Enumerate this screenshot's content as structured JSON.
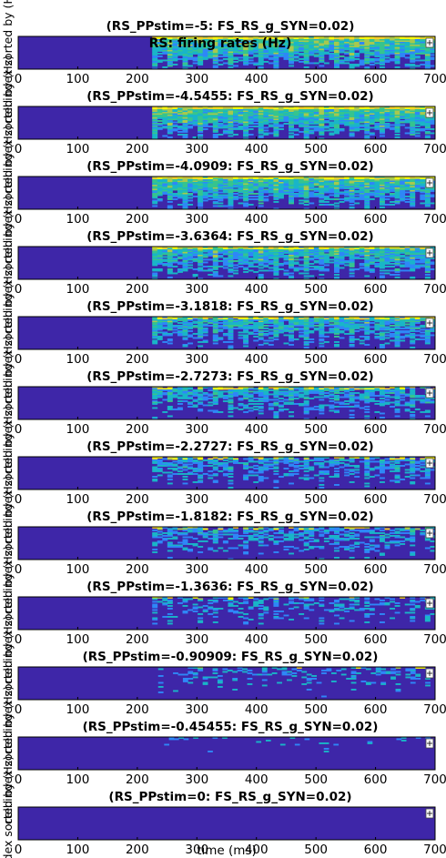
{
  "figure_title": "RS: firing rates (Hz)",
  "xlabel": "time (ms)",
  "ylabel_fragment": "cell index sorted by (Hz)",
  "colormap": [
    "#3e26a8",
    "#2e87f7",
    "#19b5c8",
    "#35c48f",
    "#a8c84e",
    "#f5d02b",
    "#f9fb0e"
  ],
  "background_color": "#3e26a8",
  "legend_icon": "plus-sign-icon",
  "chart_data": [
    {
      "type": "heatmap",
      "title": "(RS_PPstim=-5: FS_RS_g_SYN=0.02)",
      "onset_ms": 225,
      "activity": 0.96,
      "xlim": [
        0,
        700
      ],
      "xticks": [
        "0",
        "100",
        "200",
        "300",
        "400",
        "500",
        "600",
        "700"
      ]
    },
    {
      "type": "heatmap",
      "title": "(RS_PPstim=-4.5455: FS_RS_g_SYN=0.02)",
      "onset_ms": 225,
      "activity": 0.92,
      "xlim": [
        0,
        700
      ],
      "xticks": [
        "0",
        "100",
        "200",
        "300",
        "400",
        "500",
        "600",
        "700"
      ]
    },
    {
      "type": "heatmap",
      "title": "(RS_PPstim=-4.0909: FS_RS_g_SYN=0.02)",
      "onset_ms": 225,
      "activity": 0.85,
      "xlim": [
        0,
        700
      ],
      "xticks": [
        "0",
        "100",
        "200",
        "300",
        "400",
        "500",
        "600",
        "700"
      ]
    },
    {
      "type": "heatmap",
      "title": "(RS_PPstim=-3.6364: FS_RS_g_SYN=0.02)",
      "onset_ms": 225,
      "activity": 0.72,
      "xlim": [
        0,
        700
      ],
      "xticks": [
        "0",
        "100",
        "200",
        "300",
        "400",
        "500",
        "600",
        "700"
      ]
    },
    {
      "type": "heatmap",
      "title": "(RS_PPstim=-3.1818: FS_RS_g_SYN=0.02)",
      "onset_ms": 225,
      "activity": 0.62,
      "xlim": [
        0,
        700
      ],
      "xticks": [
        "0",
        "100",
        "200",
        "300",
        "400",
        "500",
        "600",
        "700"
      ]
    },
    {
      "type": "heatmap",
      "title": "(RS_PPstim=-2.7273: FS_RS_g_SYN=0.02)",
      "onset_ms": 225,
      "activity": 0.52,
      "xlim": [
        0,
        700
      ],
      "xticks": [
        "0",
        "100",
        "200",
        "300",
        "400",
        "500",
        "600",
        "700"
      ]
    },
    {
      "type": "heatmap",
      "title": "(RS_PPstim=-2.2727: FS_RS_g_SYN=0.02)",
      "onset_ms": 225,
      "activity": 0.44,
      "xlim": [
        0,
        700
      ],
      "xticks": [
        "0",
        "100",
        "200",
        "300",
        "400",
        "500",
        "600",
        "700"
      ]
    },
    {
      "type": "heatmap",
      "title": "(RS_PPstim=-1.8182: FS_RS_g_SYN=0.02)",
      "onset_ms": 225,
      "activity": 0.4,
      "xlim": [
        0,
        700
      ],
      "xticks": [
        "0",
        "100",
        "200",
        "300",
        "400",
        "500",
        "600",
        "700"
      ]
    },
    {
      "type": "heatmap",
      "title": "(RS_PPstim=-1.3636: FS_RS_g_SYN=0.02)",
      "onset_ms": 225,
      "activity": 0.32,
      "xlim": [
        0,
        700
      ],
      "xticks": [
        "0",
        "100",
        "200",
        "300",
        "400",
        "500",
        "600",
        "700"
      ]
    },
    {
      "type": "heatmap",
      "title": "(RS_PPstim=-0.90909: FS_RS_g_SYN=0.02)",
      "onset_ms": 235,
      "activity": 0.24,
      "xlim": [
        0,
        700
      ],
      "xticks": [
        "0",
        "100",
        "200",
        "300",
        "400",
        "500",
        "600",
        "700"
      ]
    },
    {
      "type": "heatmap",
      "title": "(RS_PPstim=-0.45455: FS_RS_g_SYN=0.02)",
      "onset_ms": 245,
      "activity": 0.14,
      "xlim": [
        0,
        700
      ],
      "xticks": [
        "0",
        "100",
        "200",
        "300",
        "400",
        "500",
        "600",
        "700"
      ]
    },
    {
      "type": "heatmap",
      "title": "(RS_PPstim=0: FS_RS_g_SYN=0.02)",
      "onset_ms": 270,
      "activity": 0.05,
      "xlim": [
        0,
        700
      ],
      "xticks": [
        "0",
        "100",
        "200",
        "300",
        "400",
        "500",
        "600",
        "700"
      ]
    }
  ]
}
